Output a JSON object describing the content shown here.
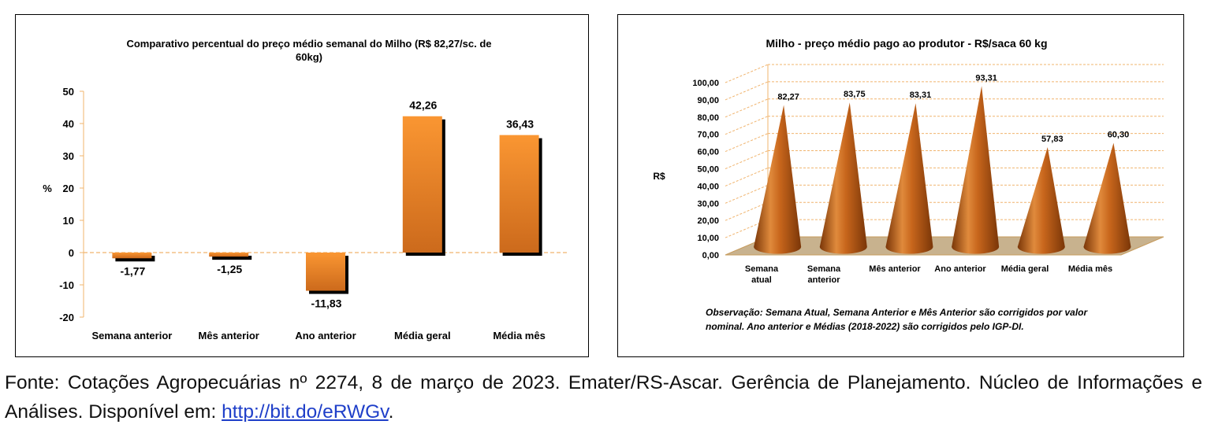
{
  "chart_data": [
    {
      "type": "bar",
      "title": "Comparativo percentual do preço médio semanal do Milho (R$ 82,27/sc. de 60kg)",
      "ylabel": "%",
      "xlabel": "",
      "categories": [
        "Semana anterior",
        "Mês anterior",
        "Ano anterior",
        "Média geral",
        "Média mês"
      ],
      "values": [
        -1.77,
        -1.25,
        -11.83,
        42.26,
        36.43
      ],
      "value_labels": [
        "-1,77",
        "-1,25",
        "-11,83",
        "42,26",
        "36,43"
      ],
      "ylim": [
        -20,
        50
      ],
      "yticks": [
        "-20",
        "-10",
        "0",
        "10",
        "20",
        "30",
        "40",
        "50"
      ],
      "grid": false,
      "legend": "none"
    },
    {
      "type": "bar",
      "subtype": "3d-cone",
      "title": "Milho - preço médio pago ao produtor - R$/saca 60 kg",
      "ylabel": "R$",
      "xlabel": "",
      "categories": [
        "Semana atual",
        "Semana anterior",
        "Mês anterior",
        "Ano anterior",
        "Média geral",
        "Média mês"
      ],
      "values": [
        82.27,
        83.75,
        83.31,
        93.31,
        57.83,
        60.3
      ],
      "value_labels": [
        "82,27",
        "83,75",
        "83,31",
        "93,31",
        "57,83",
        "60,30"
      ],
      "ylim": [
        0,
        100
      ],
      "yticks": [
        "0,00",
        "10,00",
        "20,00",
        "30,00",
        "40,00",
        "50,00",
        "60,00",
        "70,00",
        "80,00",
        "90,00",
        "100,00"
      ],
      "grid": true,
      "legend": "none",
      "note": "Observação: Semana Atual, Semana Anterior e Mês Anterior são corrigidos por valor nominal. Ano anterior e Médias (2018-2022) são corrigidos pelo IGP-DI."
    }
  ],
  "caption": {
    "text": "Fonte: Cotações Agropecuárias nº 2274, 8 de março de 2023. Emater/RS-Ascar. Gerência de Planejamento. Núcleo de Informações e Análises. Disponível em: ",
    "link": "http://bit.do/eRWGv",
    "trailing": "."
  },
  "colors": {
    "bar_top": "#fa9632",
    "bar_bottom": "#cc6a1c",
    "cone_light": "#e08a3c",
    "cone_dark": "#7a3608",
    "floor": "#c8b28e",
    "grid": "#f0b46e",
    "link": "#1f3fc9"
  }
}
